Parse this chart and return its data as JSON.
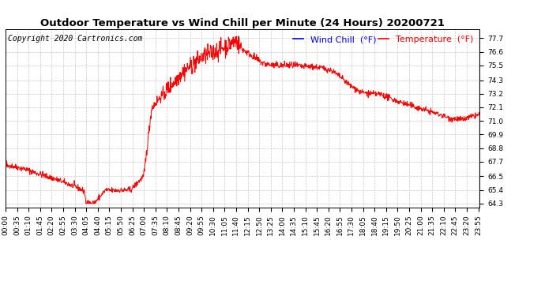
{
  "title": "Outdoor Temperature vs Wind Chill per Minute (24 Hours) 20200721",
  "copyright_text": "Copyright 2020 Cartronics.com",
  "legend_wind_chill": "Wind Chill  (°F)",
  "legend_temperature": "Temperature  (°F)",
  "wind_chill_color": "blue",
  "temperature_color": "red",
  "line_color": "red",
  "background_color": "white",
  "grid_color": "#bbbbbb",
  "yticks": [
    64.3,
    65.4,
    66.5,
    67.7,
    68.8,
    69.9,
    71.0,
    72.1,
    73.2,
    74.3,
    75.5,
    76.6,
    77.7
  ],
  "ylim": [
    64.0,
    78.4
  ],
  "title_fontsize": 9.5,
  "tick_fontsize": 6.5,
  "legend_fontsize": 8,
  "copyright_fontsize": 7
}
